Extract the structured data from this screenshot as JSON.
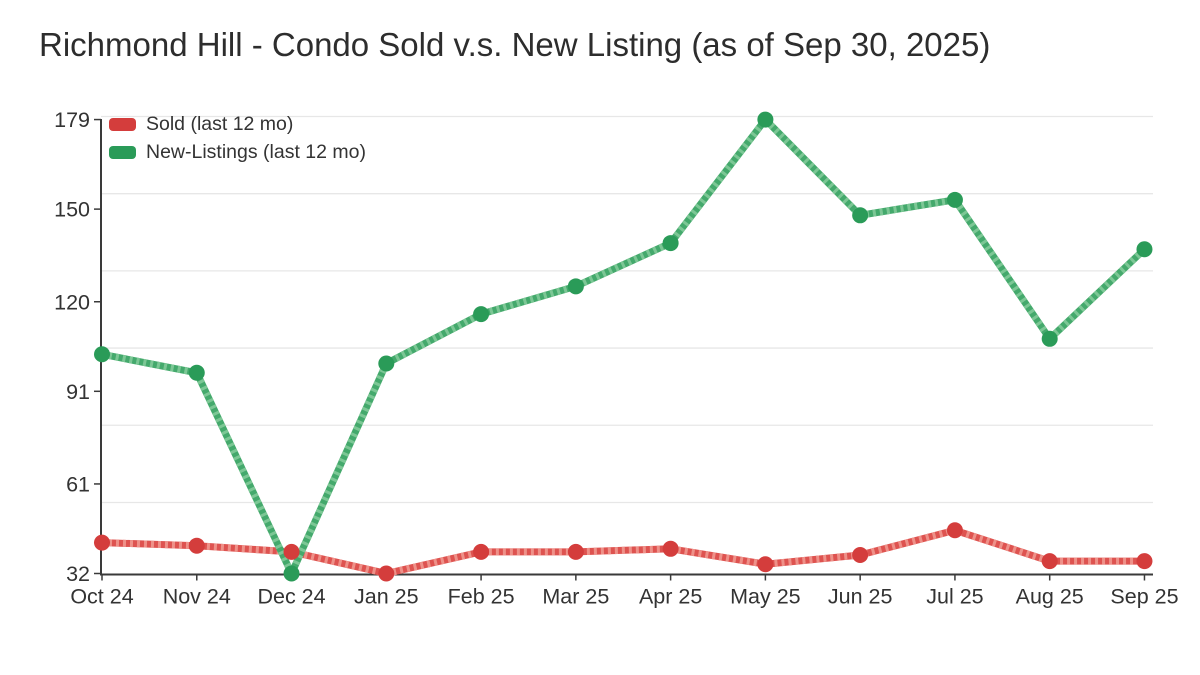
{
  "title": "Richmond Hill - Condo Sold v.s. New Listing (as of Sep 30, 2025)",
  "legend": {
    "items": [
      {
        "label": "Sold (last 12 mo)",
        "color": "#d43d3c"
      },
      {
        "label": "New-Listings (last 12 mo)",
        "color": "#2a9b58"
      }
    ]
  },
  "chart_data": {
    "type": "line",
    "title": "Richmond Hill - Condo Sold v.s. New Listing (as of Sep 30, 2025)",
    "categories": [
      "Oct 24",
      "Nov 24",
      "Dec 24",
      "Jan 25",
      "Feb 25",
      "Mar 25",
      "Apr 25",
      "May 25",
      "Jun 25",
      "Jul 25",
      "Aug 25",
      "Sep 25"
    ],
    "series": [
      {
        "name": "Sold (last 12 mo)",
        "values": [
          42,
          41,
          39,
          32,
          39,
          39,
          40,
          35,
          38,
          46,
          36,
          36
        ],
        "color": "#d43d3c",
        "line_color": "#de5350",
        "stripe_color": "#ee9189"
      },
      {
        "name": "New-Listings (last 12 mo)",
        "values": [
          103,
          97,
          32,
          100,
          116,
          125,
          139,
          179,
          148,
          153,
          108,
          137
        ],
        "color": "#2a9b58",
        "line_color": "#44a96c",
        "stripe_color": "#7cc795"
      }
    ],
    "ytick_values": [
      32,
      61,
      91,
      120,
      150,
      179
    ],
    "gridline_values": [
      55,
      80,
      105,
      130,
      155,
      180
    ],
    "ylim": [
      32,
      179
    ],
    "xlabel": "",
    "ylabel": "",
    "legend_position": "top-left-inside",
    "grid": "horizontal"
  },
  "colors": {
    "background": "#ffffff",
    "axis": "#3a3a3a",
    "gridline": "#e7e7e7",
    "tick_label": "#333333",
    "title_text": "#2d2d2d"
  }
}
